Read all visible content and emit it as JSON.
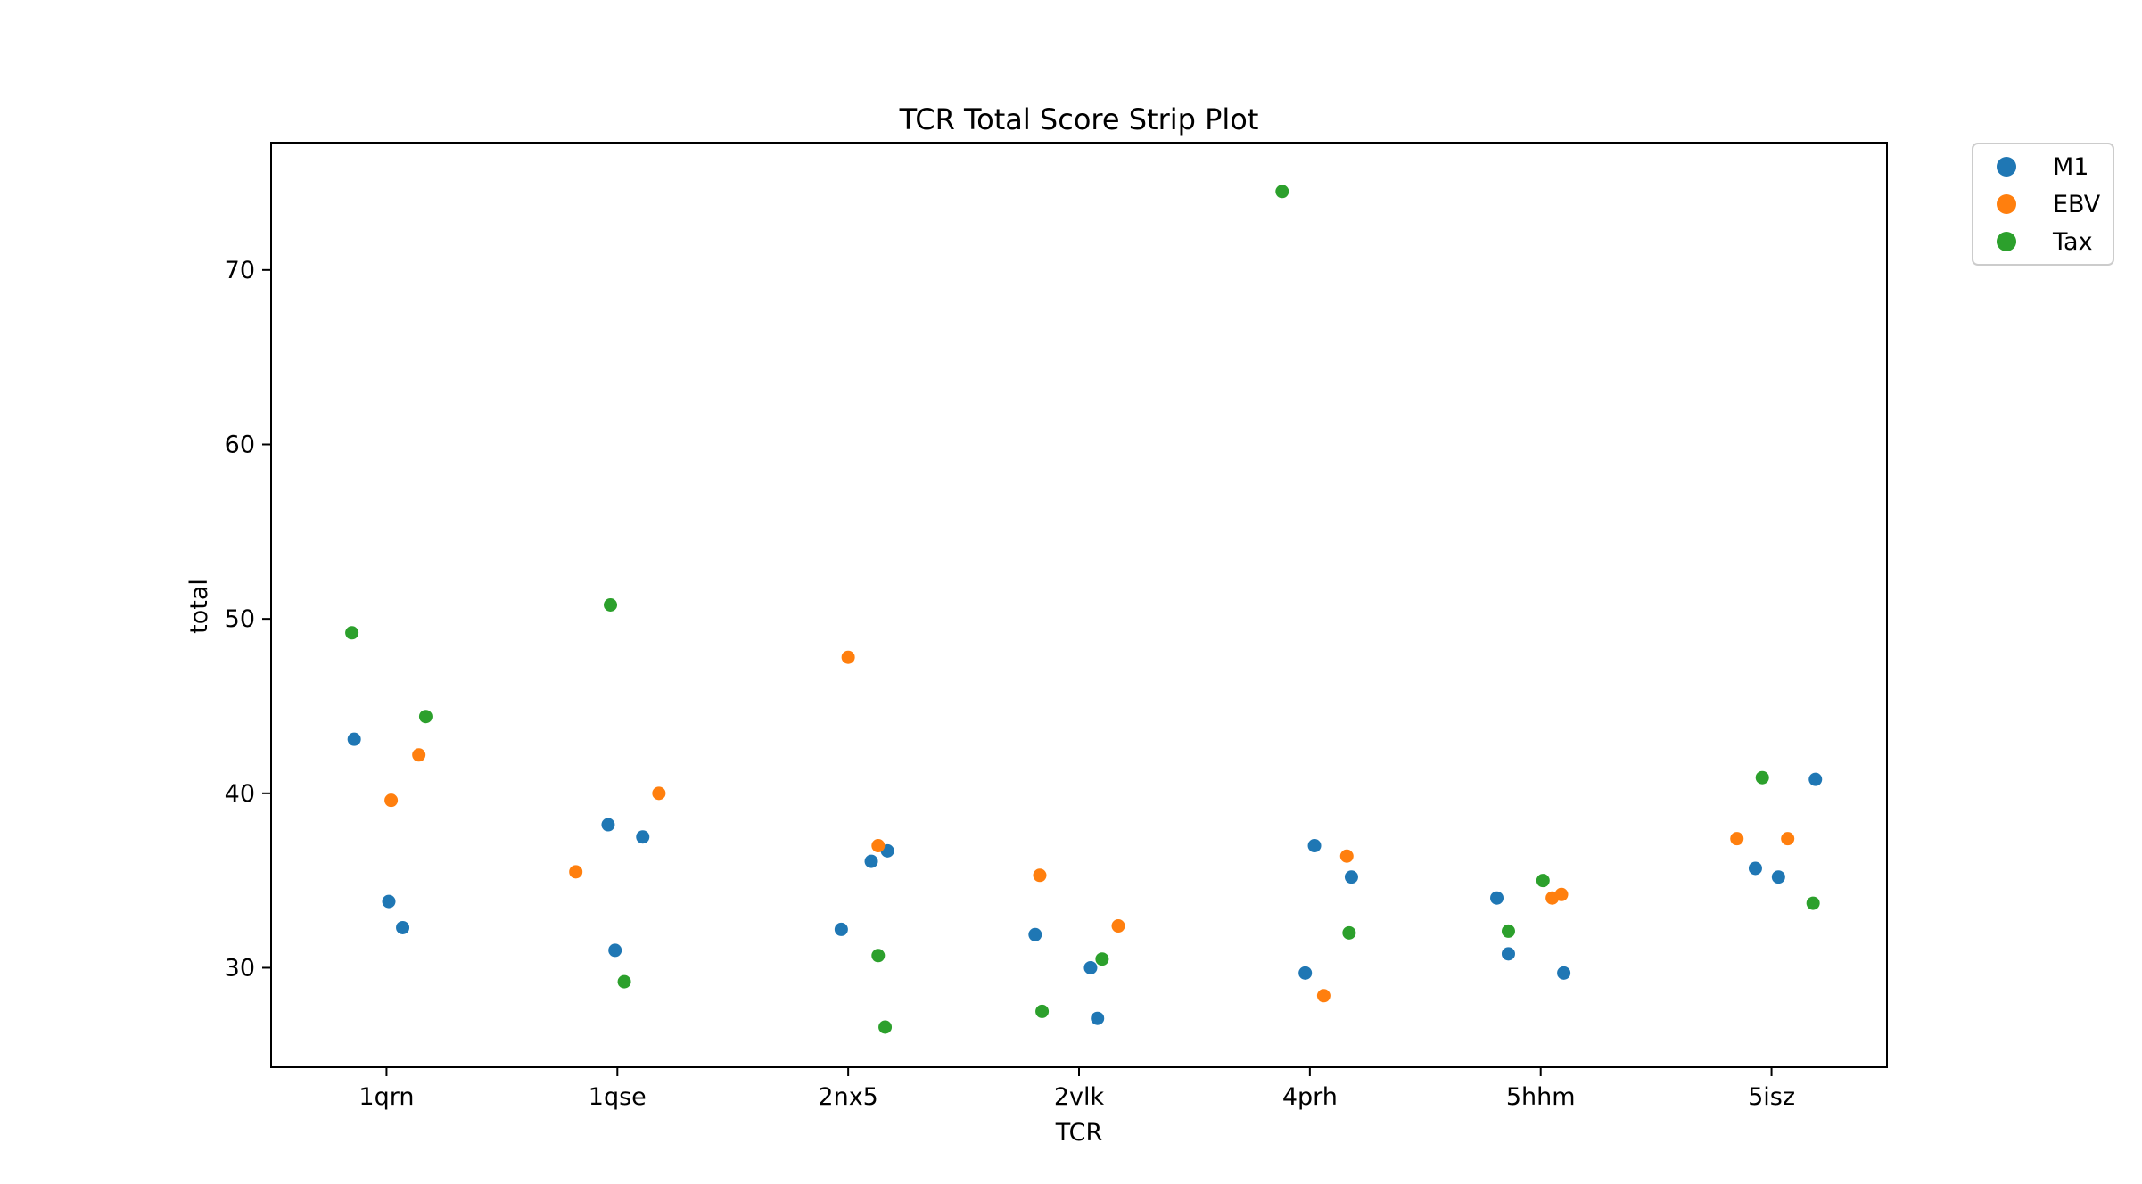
{
  "chart_data": {
    "type": "scatter",
    "title": "TCR Total Score Strip Plot",
    "xlabel": "TCR",
    "ylabel": "total",
    "categories": [
      "1qrn",
      "1qse",
      "2nx5",
      "2vlk",
      "4prh",
      "5hhm",
      "5isz"
    ],
    "ylim": [
      24.3,
      77.3
    ],
    "yticks": [
      30,
      40,
      50,
      60,
      70
    ],
    "grid": false,
    "legend_position": "outside-top-right",
    "series": [
      {
        "name": "M1",
        "color": "#1f77b4",
        "points": [
          {
            "category": "1qrn",
            "jitter": -0.14,
            "y": 43.1
          },
          {
            "category": "1qrn",
            "jitter": 0.01,
            "y": 33.8
          },
          {
            "category": "1qrn",
            "jitter": 0.07,
            "y": 32.3
          },
          {
            "category": "1qse",
            "jitter": -0.04,
            "y": 38.2
          },
          {
            "category": "1qse",
            "jitter": 0.11,
            "y": 37.5
          },
          {
            "category": "1qse",
            "jitter": -0.01,
            "y": 31.0
          },
          {
            "category": "2nx5",
            "jitter": 0.17,
            "y": 36.7
          },
          {
            "category": "2nx5",
            "jitter": 0.1,
            "y": 36.1
          },
          {
            "category": "2nx5",
            "jitter": -0.03,
            "y": 32.2
          },
          {
            "category": "2vlk",
            "jitter": -0.19,
            "y": 31.9
          },
          {
            "category": "2vlk",
            "jitter": 0.05,
            "y": 30.0
          },
          {
            "category": "2vlk",
            "jitter": 0.08,
            "y": 27.1
          },
          {
            "category": "4prh",
            "jitter": 0.02,
            "y": 37.0
          },
          {
            "category": "4prh",
            "jitter": 0.18,
            "y": 35.2
          },
          {
            "category": "4prh",
            "jitter": -0.02,
            "y": 29.7
          },
          {
            "category": "5hhm",
            "jitter": -0.19,
            "y": 34.0
          },
          {
            "category": "5hhm",
            "jitter": -0.14,
            "y": 30.8
          },
          {
            "category": "5hhm",
            "jitter": 0.1,
            "y": 29.7
          },
          {
            "category": "5isz",
            "jitter": 0.19,
            "y": 40.8
          },
          {
            "category": "5isz",
            "jitter": -0.07,
            "y": 35.7
          },
          {
            "category": "5isz",
            "jitter": 0.03,
            "y": 35.2
          }
        ]
      },
      {
        "name": "EBV",
        "color": "#ff7f0e",
        "points": [
          {
            "category": "1qrn",
            "jitter": 0.14,
            "y": 42.2
          },
          {
            "category": "1qrn",
            "jitter": 0.02,
            "y": 39.6
          },
          {
            "category": "1qse",
            "jitter": 0.18,
            "y": 40.0
          },
          {
            "category": "1qse",
            "jitter": -0.18,
            "y": 35.5
          },
          {
            "category": "2nx5",
            "jitter": 0.0,
            "y": 47.8
          },
          {
            "category": "2nx5",
            "jitter": 0.13,
            "y": 37.0
          },
          {
            "category": "2vlk",
            "jitter": -0.17,
            "y": 35.3
          },
          {
            "category": "2vlk",
            "jitter": 0.17,
            "y": 32.4
          },
          {
            "category": "4prh",
            "jitter": 0.16,
            "y": 36.4
          },
          {
            "category": "4prh",
            "jitter": 0.06,
            "y": 28.4
          },
          {
            "category": "5hhm",
            "jitter": 0.05,
            "y": 34.0
          },
          {
            "category": "5hhm",
            "jitter": 0.09,
            "y": 34.2
          },
          {
            "category": "5isz",
            "jitter": -0.15,
            "y": 37.4
          },
          {
            "category": "5isz",
            "jitter": 0.07,
            "y": 37.4
          }
        ]
      },
      {
        "name": "Tax",
        "color": "#2ca02c",
        "points": [
          {
            "category": "1qrn",
            "jitter": -0.15,
            "y": 49.2
          },
          {
            "category": "1qrn",
            "jitter": 0.17,
            "y": 44.4
          },
          {
            "category": "1qse",
            "jitter": -0.03,
            "y": 50.8
          },
          {
            "category": "1qse",
            "jitter": 0.03,
            "y": 29.2
          },
          {
            "category": "2nx5",
            "jitter": 0.13,
            "y": 30.7
          },
          {
            "category": "2nx5",
            "jitter": 0.16,
            "y": 26.6
          },
          {
            "category": "2vlk",
            "jitter": 0.1,
            "y": 30.5
          },
          {
            "category": "2vlk",
            "jitter": -0.16,
            "y": 27.5
          },
          {
            "category": "4prh",
            "jitter": -0.12,
            "y": 74.5
          },
          {
            "category": "4prh",
            "jitter": 0.17,
            "y": 32.0
          },
          {
            "category": "5hhm",
            "jitter": 0.01,
            "y": 35.0
          },
          {
            "category": "5hhm",
            "jitter": -0.14,
            "y": 32.1
          },
          {
            "category": "5isz",
            "jitter": -0.04,
            "y": 40.9
          },
          {
            "category": "5isz",
            "jitter": 0.18,
            "y": 33.7
          }
        ]
      }
    ]
  }
}
